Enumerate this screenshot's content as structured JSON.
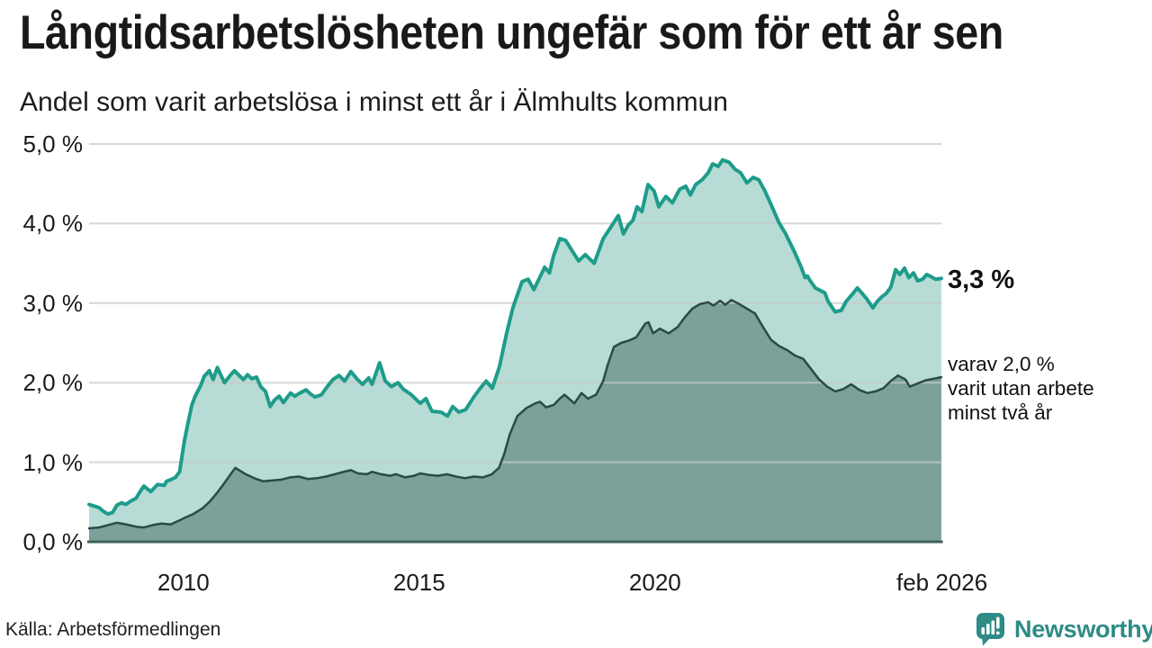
{
  "header": {
    "title": "Långtidsarbetslösheten ungefär som för ett år sen",
    "subtitle": "Andel som varit arbetslösa i minst ett år i Älmhults kommun"
  },
  "source": {
    "label": "Källa: Arbetsförmedlingen"
  },
  "branding": {
    "wordmark": "Newsworthy",
    "color": "#2e8b85",
    "icon": "newsworthy-chart-bubble"
  },
  "chart_data": {
    "type": "area",
    "title": "Långtidsarbetslösheten ungefär som för ett år sen",
    "subtitle": "Andel som varit arbetslösa i minst ett år i Älmhults kommun",
    "xlabel": "",
    "ylabel": "",
    "grid": true,
    "legend_position": "right-annotations",
    "x_axis": {
      "range": [
        2008.0,
        2026.083
      ],
      "ticks": [
        {
          "value": 2010,
          "label": "2010"
        },
        {
          "value": 2015,
          "label": "2015"
        },
        {
          "value": 2020,
          "label": "2020"
        },
        {
          "value": 2026.083,
          "label": "feb 2026"
        }
      ]
    },
    "y_axis": {
      "range": [
        0,
        5
      ],
      "ticks": [
        {
          "value": 0,
          "label": "0,0 %"
        },
        {
          "value": 1,
          "label": "1,0 %"
        },
        {
          "value": 2,
          "label": "2,0 %"
        },
        {
          "value": 3,
          "label": "3,0 %"
        },
        {
          "value": 4,
          "label": "4,0 %"
        },
        {
          "value": 5,
          "label": "5,0 %"
        }
      ]
    },
    "annotations": {
      "latest_value": "3,3 %",
      "secondary": [
        "varav 2,0 %",
        "varit utan arbete",
        "minst två år"
      ]
    },
    "colors": {
      "series1_line": "#1e9c8b",
      "series1_fill": "#b7dcd5",
      "series2_line": "#2c4a44",
      "series2_fill": "#7ba19a",
      "gridline": "#c7cbca",
      "baseline": "#40615a"
    },
    "series": [
      {
        "name": "minst ett år",
        "end_value": 3.3,
        "points": [
          [
            2008.0,
            0.47
          ],
          [
            2008.1,
            0.45
          ],
          [
            2008.21,
            0.43
          ],
          [
            2008.31,
            0.38
          ],
          [
            2008.4,
            0.35
          ],
          [
            2008.5,
            0.37
          ],
          [
            2008.59,
            0.46
          ],
          [
            2008.69,
            0.49
          ],
          [
            2008.78,
            0.47
          ],
          [
            2008.88,
            0.51
          ],
          [
            2009.0,
            0.55
          ],
          [
            2009.06,
            0.61
          ],
          [
            2009.16,
            0.7
          ],
          [
            2009.31,
            0.63
          ],
          [
            2009.45,
            0.72
          ],
          [
            2009.6,
            0.71
          ],
          [
            2009.64,
            0.76
          ],
          [
            2009.73,
            0.78
          ],
          [
            2009.83,
            0.81
          ],
          [
            2009.92,
            0.88
          ],
          [
            2010.02,
            1.27
          ],
          [
            2010.1,
            1.5
          ],
          [
            2010.18,
            1.72
          ],
          [
            2010.25,
            1.83
          ],
          [
            2010.37,
            1.97
          ],
          [
            2010.44,
            2.08
          ],
          [
            2010.55,
            2.15
          ],
          [
            2010.63,
            2.04
          ],
          [
            2010.72,
            2.19
          ],
          [
            2010.87,
            2.0
          ],
          [
            2010.99,
            2.09
          ],
          [
            2011.08,
            2.15
          ],
          [
            2011.27,
            2.04
          ],
          [
            2011.36,
            2.1
          ],
          [
            2011.45,
            2.05
          ],
          [
            2011.55,
            2.07
          ],
          [
            2011.64,
            1.95
          ],
          [
            2011.74,
            1.89
          ],
          [
            2011.84,
            1.7
          ],
          [
            2011.93,
            1.78
          ],
          [
            2012.03,
            1.83
          ],
          [
            2012.12,
            1.75
          ],
          [
            2012.27,
            1.87
          ],
          [
            2012.36,
            1.83
          ],
          [
            2012.5,
            1.88
          ],
          [
            2012.6,
            1.91
          ],
          [
            2012.69,
            1.86
          ],
          [
            2012.79,
            1.82
          ],
          [
            2012.93,
            1.85
          ],
          [
            2013.05,
            1.95
          ],
          [
            2013.17,
            2.04
          ],
          [
            2013.3,
            2.09
          ],
          [
            2013.42,
            2.02
          ],
          [
            2013.55,
            2.14
          ],
          [
            2013.69,
            2.04
          ],
          [
            2013.8,
            1.98
          ],
          [
            2013.93,
            2.06
          ],
          [
            2014.0,
            1.98
          ],
          [
            2014.16,
            2.25
          ],
          [
            2014.28,
            2.02
          ],
          [
            2014.41,
            1.95
          ],
          [
            2014.55,
            2.0
          ],
          [
            2014.66,
            1.92
          ],
          [
            2014.83,
            1.85
          ],
          [
            2015.02,
            1.74
          ],
          [
            2015.14,
            1.8
          ],
          [
            2015.27,
            1.64
          ],
          [
            2015.46,
            1.63
          ],
          [
            2015.6,
            1.58
          ],
          [
            2015.71,
            1.7
          ],
          [
            2015.84,
            1.63
          ],
          [
            2015.98,
            1.66
          ],
          [
            2016.17,
            1.83
          ],
          [
            2016.28,
            1.92
          ],
          [
            2016.42,
            2.02
          ],
          [
            2016.55,
            1.93
          ],
          [
            2016.7,
            2.2
          ],
          [
            2016.86,
            2.64
          ],
          [
            2016.99,
            2.95
          ],
          [
            2017.18,
            3.27
          ],
          [
            2017.31,
            3.3
          ],
          [
            2017.43,
            3.17
          ],
          [
            2017.66,
            3.45
          ],
          [
            2017.76,
            3.38
          ],
          [
            2017.85,
            3.6
          ],
          [
            2017.98,
            3.81
          ],
          [
            2018.1,
            3.79
          ],
          [
            2018.38,
            3.53
          ],
          [
            2018.52,
            3.61
          ],
          [
            2018.71,
            3.5
          ],
          [
            2018.9,
            3.81
          ],
          [
            2019.09,
            3.98
          ],
          [
            2019.22,
            4.1
          ],
          [
            2019.33,
            3.87
          ],
          [
            2019.43,
            3.98
          ],
          [
            2019.53,
            4.04
          ],
          [
            2019.62,
            4.21
          ],
          [
            2019.72,
            4.15
          ],
          [
            2019.85,
            4.49
          ],
          [
            2019.98,
            4.41
          ],
          [
            2020.08,
            4.21
          ],
          [
            2020.23,
            4.34
          ],
          [
            2020.37,
            4.26
          ],
          [
            2020.52,
            4.43
          ],
          [
            2020.65,
            4.47
          ],
          [
            2020.75,
            4.36
          ],
          [
            2020.86,
            4.49
          ],
          [
            2021.0,
            4.55
          ],
          [
            2021.13,
            4.64
          ],
          [
            2021.22,
            4.75
          ],
          [
            2021.34,
            4.72
          ],
          [
            2021.43,
            4.8
          ],
          [
            2021.57,
            4.77
          ],
          [
            2021.7,
            4.68
          ],
          [
            2021.81,
            4.64
          ],
          [
            2021.95,
            4.51
          ],
          [
            2022.08,
            4.58
          ],
          [
            2022.2,
            4.55
          ],
          [
            2022.33,
            4.41
          ],
          [
            2022.46,
            4.24
          ],
          [
            2022.62,
            4.02
          ],
          [
            2022.77,
            3.87
          ],
          [
            2022.96,
            3.64
          ],
          [
            2023.1,
            3.45
          ],
          [
            2023.18,
            3.32
          ],
          [
            2023.23,
            3.34
          ],
          [
            2023.29,
            3.28
          ],
          [
            2023.4,
            3.19
          ],
          [
            2023.5,
            3.16
          ],
          [
            2023.6,
            3.13
          ],
          [
            2023.67,
            3.02
          ],
          [
            2023.82,
            2.89
          ],
          [
            2023.95,
            2.91
          ],
          [
            2024.05,
            3.02
          ],
          [
            2024.18,
            3.11
          ],
          [
            2024.29,
            3.19
          ],
          [
            2024.38,
            3.13
          ],
          [
            2024.48,
            3.06
          ],
          [
            2024.62,
            2.94
          ],
          [
            2024.71,
            3.02
          ],
          [
            2024.81,
            3.08
          ],
          [
            2024.9,
            3.12
          ],
          [
            2025.0,
            3.2
          ],
          [
            2025.1,
            3.42
          ],
          [
            2025.19,
            3.36
          ],
          [
            2025.29,
            3.44
          ],
          [
            2025.38,
            3.32
          ],
          [
            2025.48,
            3.38
          ],
          [
            2025.57,
            3.28
          ],
          [
            2025.67,
            3.3
          ],
          [
            2025.76,
            3.36
          ],
          [
            2025.86,
            3.33
          ],
          [
            2025.95,
            3.3
          ],
          [
            2026.07,
            3.31
          ]
        ]
      },
      {
        "name": "minst två år",
        "end_value": 2.0,
        "points": [
          [
            2008.0,
            0.17
          ],
          [
            2008.21,
            0.18
          ],
          [
            2008.4,
            0.21
          ],
          [
            2008.59,
            0.24
          ],
          [
            2008.78,
            0.22
          ],
          [
            2009.0,
            0.19
          ],
          [
            2009.16,
            0.18
          ],
          [
            2009.35,
            0.21
          ],
          [
            2009.54,
            0.23
          ],
          [
            2009.73,
            0.22
          ],
          [
            2009.92,
            0.27
          ],
          [
            2010.02,
            0.3
          ],
          [
            2010.21,
            0.35
          ],
          [
            2010.4,
            0.42
          ],
          [
            2010.55,
            0.5
          ],
          [
            2010.72,
            0.62
          ],
          [
            2010.87,
            0.74
          ],
          [
            2010.99,
            0.84
          ],
          [
            2011.1,
            0.93
          ],
          [
            2011.21,
            0.89
          ],
          [
            2011.32,
            0.85
          ],
          [
            2011.5,
            0.8
          ],
          [
            2011.69,
            0.76
          ],
          [
            2011.88,
            0.77
          ],
          [
            2012.07,
            0.78
          ],
          [
            2012.26,
            0.81
          ],
          [
            2012.45,
            0.82
          ],
          [
            2012.64,
            0.79
          ],
          [
            2012.83,
            0.8
          ],
          [
            2013.02,
            0.82
          ],
          [
            2013.21,
            0.85
          ],
          [
            2013.4,
            0.88
          ],
          [
            2013.55,
            0.9
          ],
          [
            2013.7,
            0.86
          ],
          [
            2013.89,
            0.85
          ],
          [
            2014.0,
            0.88
          ],
          [
            2014.19,
            0.85
          ],
          [
            2014.38,
            0.83
          ],
          [
            2014.51,
            0.85
          ],
          [
            2014.7,
            0.81
          ],
          [
            2014.89,
            0.83
          ],
          [
            2015.02,
            0.86
          ],
          [
            2015.21,
            0.84
          ],
          [
            2015.4,
            0.83
          ],
          [
            2015.59,
            0.85
          ],
          [
            2015.78,
            0.82
          ],
          [
            2015.97,
            0.8
          ],
          [
            2016.16,
            0.82
          ],
          [
            2016.35,
            0.81
          ],
          [
            2016.54,
            0.85
          ],
          [
            2016.69,
            0.93
          ],
          [
            2016.8,
            1.1
          ],
          [
            2016.92,
            1.35
          ],
          [
            2017.08,
            1.58
          ],
          [
            2017.27,
            1.68
          ],
          [
            2017.46,
            1.74
          ],
          [
            2017.56,
            1.76
          ],
          [
            2017.69,
            1.69
          ],
          [
            2017.85,
            1.72
          ],
          [
            2017.98,
            1.8
          ],
          [
            2018.08,
            1.85
          ],
          [
            2018.29,
            1.74
          ],
          [
            2018.44,
            1.87
          ],
          [
            2018.58,
            1.8
          ],
          [
            2018.75,
            1.85
          ],
          [
            2018.9,
            2.02
          ],
          [
            2019.0,
            2.23
          ],
          [
            2019.13,
            2.45
          ],
          [
            2019.28,
            2.5
          ],
          [
            2019.45,
            2.53
          ],
          [
            2019.6,
            2.57
          ],
          [
            2019.79,
            2.74
          ],
          [
            2019.86,
            2.76
          ],
          [
            2019.96,
            2.62
          ],
          [
            2020.1,
            2.68
          ],
          [
            2020.29,
            2.62
          ],
          [
            2020.48,
            2.7
          ],
          [
            2020.63,
            2.82
          ],
          [
            2020.79,
            2.93
          ],
          [
            2020.96,
            2.99
          ],
          [
            2021.13,
            3.01
          ],
          [
            2021.24,
            2.97
          ],
          [
            2021.38,
            3.03
          ],
          [
            2021.49,
            2.98
          ],
          [
            2021.62,
            3.04
          ],
          [
            2021.78,
            2.99
          ],
          [
            2021.95,
            2.93
          ],
          [
            2022.12,
            2.87
          ],
          [
            2022.29,
            2.7
          ],
          [
            2022.46,
            2.54
          ],
          [
            2022.63,
            2.46
          ],
          [
            2022.8,
            2.41
          ],
          [
            2022.97,
            2.34
          ],
          [
            2023.14,
            2.3
          ],
          [
            2023.31,
            2.17
          ],
          [
            2023.48,
            2.04
          ],
          [
            2023.65,
            1.95
          ],
          [
            2023.82,
            1.89
          ],
          [
            2023.99,
            1.92
          ],
          [
            2024.16,
            1.98
          ],
          [
            2024.33,
            1.91
          ],
          [
            2024.5,
            1.87
          ],
          [
            2024.67,
            1.89
          ],
          [
            2024.84,
            1.93
          ],
          [
            2025.0,
            2.02
          ],
          [
            2025.15,
            2.09
          ],
          [
            2025.31,
            2.04
          ],
          [
            2025.4,
            1.95
          ],
          [
            2025.57,
            1.99
          ],
          [
            2025.74,
            2.03
          ],
          [
            2025.91,
            2.05
          ],
          [
            2026.07,
            2.07
          ]
        ]
      }
    ]
  }
}
